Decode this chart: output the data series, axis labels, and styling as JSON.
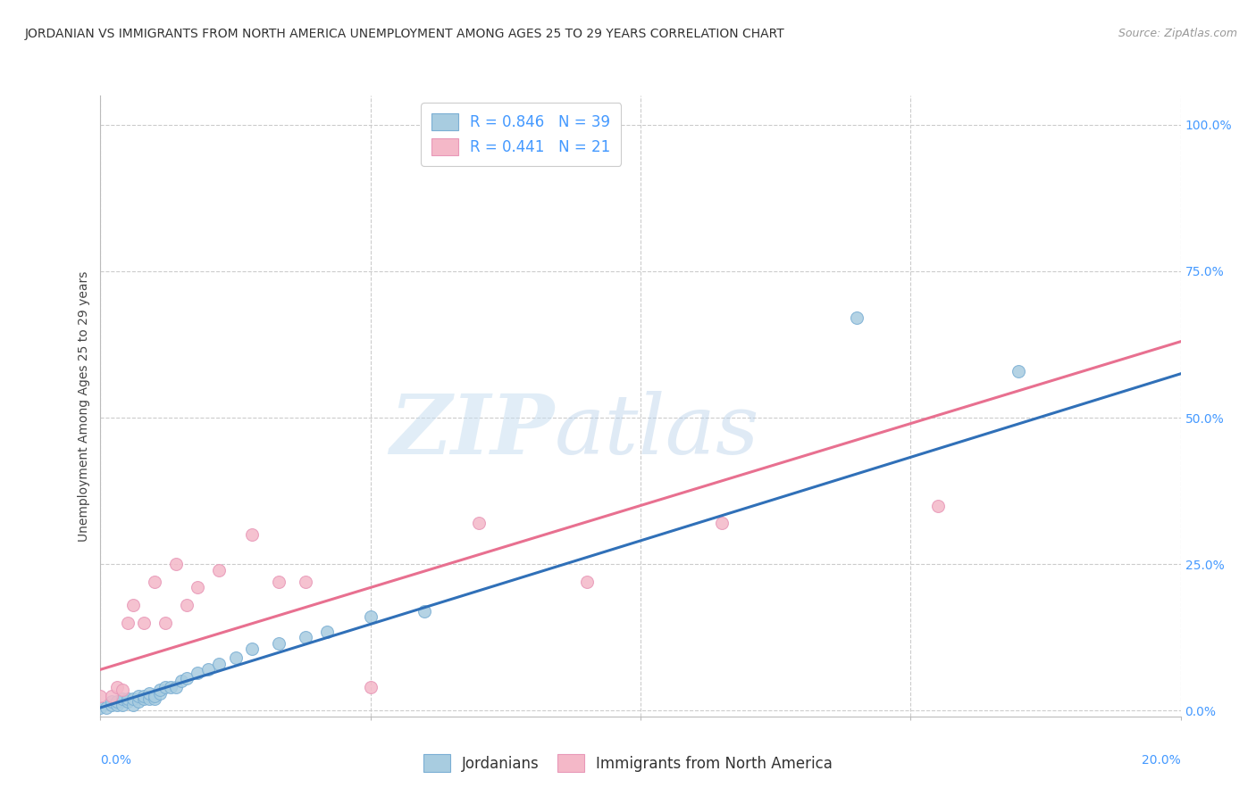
{
  "title": "JORDANIAN VS IMMIGRANTS FROM NORTH AMERICA UNEMPLOYMENT AMONG AGES 25 TO 29 YEARS CORRELATION CHART",
  "source": "Source: ZipAtlas.com",
  "ylabel": "Unemployment Among Ages 25 to 29 years",
  "watermark_zip": "ZIP",
  "watermark_atlas": "atlas",
  "jordanians_x": [
    0.0,
    0.001,
    0.002,
    0.002,
    0.003,
    0.003,
    0.004,
    0.004,
    0.005,
    0.005,
    0.006,
    0.006,
    0.007,
    0.007,
    0.008,
    0.008,
    0.009,
    0.009,
    0.01,
    0.01,
    0.011,
    0.011,
    0.012,
    0.013,
    0.014,
    0.015,
    0.016,
    0.018,
    0.02,
    0.022,
    0.025,
    0.028,
    0.033,
    0.038,
    0.042,
    0.05,
    0.06,
    0.14,
    0.17
  ],
  "jordanians_y": [
    0.005,
    0.005,
    0.01,
    0.015,
    0.01,
    0.015,
    0.01,
    0.02,
    0.015,
    0.02,
    0.01,
    0.02,
    0.015,
    0.025,
    0.02,
    0.025,
    0.02,
    0.03,
    0.02,
    0.025,
    0.03,
    0.035,
    0.04,
    0.04,
    0.04,
    0.05,
    0.055,
    0.065,
    0.07,
    0.08,
    0.09,
    0.105,
    0.115,
    0.125,
    0.135,
    0.16,
    0.17,
    0.67,
    0.58
  ],
  "immigrants_x": [
    0.0,
    0.002,
    0.003,
    0.004,
    0.005,
    0.006,
    0.008,
    0.01,
    0.012,
    0.014,
    0.016,
    0.018,
    0.022,
    0.028,
    0.033,
    0.038,
    0.05,
    0.07,
    0.09,
    0.115,
    0.155
  ],
  "immigrants_y": [
    0.025,
    0.025,
    0.04,
    0.035,
    0.15,
    0.18,
    0.15,
    0.22,
    0.15,
    0.25,
    0.18,
    0.21,
    0.24,
    0.3,
    0.22,
    0.22,
    0.04,
    0.32,
    0.22,
    0.32,
    0.35
  ],
  "blue_line_x": [
    0.0,
    0.2
  ],
  "blue_line_y": [
    0.005,
    0.575
  ],
  "pink_line_x": [
    0.0,
    0.2
  ],
  "pink_line_y": [
    0.07,
    0.63
  ],
  "xlim": [
    0.0,
    0.2
  ],
  "ylim": [
    -0.01,
    1.05
  ],
  "yticks": [
    0.0,
    0.25,
    0.5,
    0.75,
    1.0
  ],
  "ytick_labels": [
    "0.0%",
    "25.0%",
    "50.0%",
    "75.0%",
    "100.0%"
  ],
  "xtick_positions": [
    0.0,
    0.05,
    0.1,
    0.15,
    0.2
  ],
  "blue_color": "#a8cce0",
  "pink_color": "#f4b8c8",
  "blue_edge_color": "#7bafd4",
  "pink_edge_color": "#e898b8",
  "blue_line_color": "#3070b8",
  "pink_line_color": "#e87090",
  "title_fontsize": 10,
  "axis_label_fontsize": 10,
  "tick_fontsize": 10,
  "legend_fontsize": 12,
  "source_fontsize": 9,
  "marker_size": 100,
  "background_color": "#ffffff",
  "grid_color": "#cccccc",
  "ytick_color": "#4499ff",
  "xtick_color": "#4499ff"
}
